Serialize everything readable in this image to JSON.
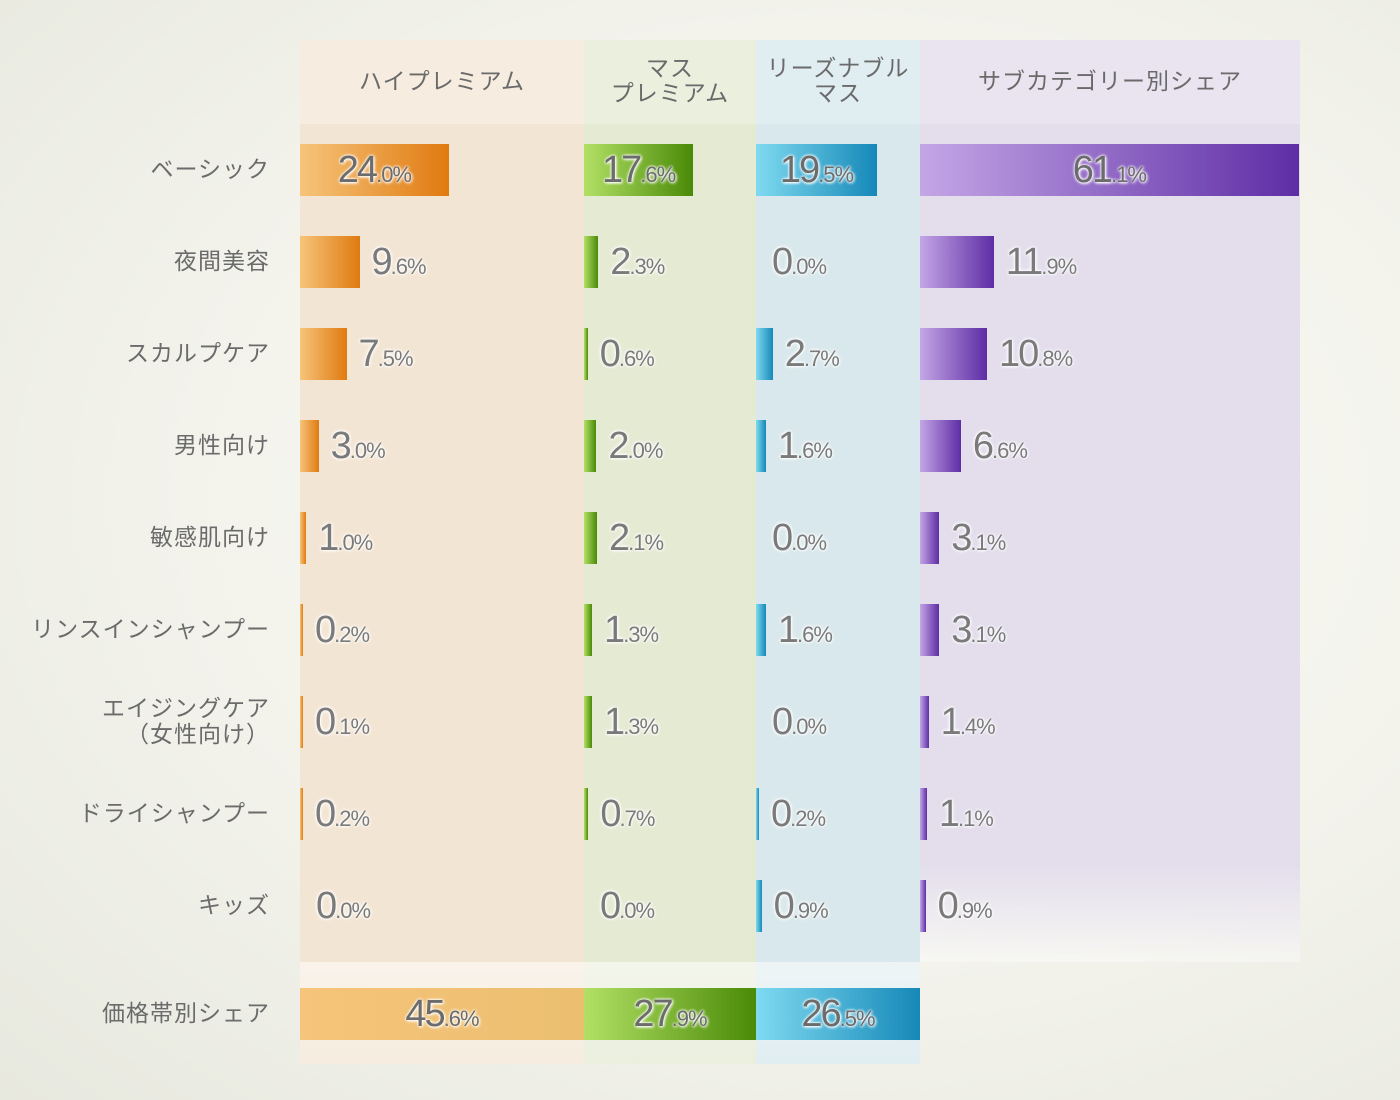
{
  "chart_data": {
    "type": "bar",
    "columns": [
      {
        "key": "high",
        "label": "ハイプレミアム",
        "colors": [
          "#f6c47a",
          "#e07a10"
        ],
        "bg": "#f3e5d3",
        "head_bg": "#f6ece0"
      },
      {
        "key": "mass",
        "label": "マス\nプレミアム",
        "colors": [
          "#b2e065",
          "#4a8a07"
        ],
        "bg": "#e5ead3",
        "head_bg": "#eaefde"
      },
      {
        "key": "reasonable",
        "label": "リーズナブル\nマス",
        "colors": [
          "#7fdaf0",
          "#1688b8"
        ],
        "bg": "#d9e8ec",
        "head_bg": "#e0edf1"
      },
      {
        "key": "share",
        "label": "サブカテゴリー別シェア",
        "colors": [
          "#c4a6e6",
          "#5e2da5"
        ],
        "bg": "#e3ddec",
        "head_bg": "#e9e4f0"
      }
    ],
    "categories": [
      "ベーシック",
      "夜間美容",
      "スカルプケア",
      "男性向け",
      "敏感肌向け",
      "リンスインシャンプー",
      "エイジングケア\n（女性向け）",
      "ドライシャンプー",
      "キッズ"
    ],
    "series": [
      {
        "key": "high",
        "values": [
          24.0,
          9.6,
          7.5,
          3.0,
          1.0,
          0.2,
          0.1,
          0.2,
          0.0
        ],
        "labels": [
          "24.0%",
          "9.6%",
          "7.5%",
          "3.0%",
          "1.0%",
          "0.2%",
          "0.1%",
          "0.2%",
          "0.0%"
        ]
      },
      {
        "key": "mass",
        "values": [
          17.6,
          2.3,
          0.6,
          2.0,
          2.1,
          1.3,
          1.3,
          0.7,
          0.0
        ],
        "labels": [
          "17.6%",
          "2.3%",
          "0.6%",
          "2.0%",
          "2.1%",
          "1.3%",
          "1.3%",
          "0.7%",
          "0.0%"
        ]
      },
      {
        "key": "reasonable",
        "values": [
          19.5,
          0.0,
          2.7,
          1.6,
          0.0,
          1.6,
          0.0,
          0.2,
          0.9
        ],
        "labels": [
          "19.5%",
          "0.0%",
          "2.7%",
          "1.6%",
          "0.0%",
          "1.6%",
          "0.0%",
          "0.2%",
          "0.9%"
        ]
      },
      {
        "key": "share",
        "values": [
          61.1,
          11.9,
          10.8,
          6.6,
          3.1,
          3.1,
          1.4,
          1.1,
          0.9
        ],
        "labels": [
          "61.1%",
          "11.9%",
          "10.8%",
          "6.6%",
          "3.1%",
          "3.1%",
          "1.4%",
          "1.1%",
          "0.9%"
        ]
      }
    ],
    "totals": {
      "label": "価格帯別シェア",
      "values": [
        45.6,
        27.9,
        26.5
      ],
      "labels": [
        "45.6%",
        "27.9%",
        "26.5%"
      ]
    }
  }
}
